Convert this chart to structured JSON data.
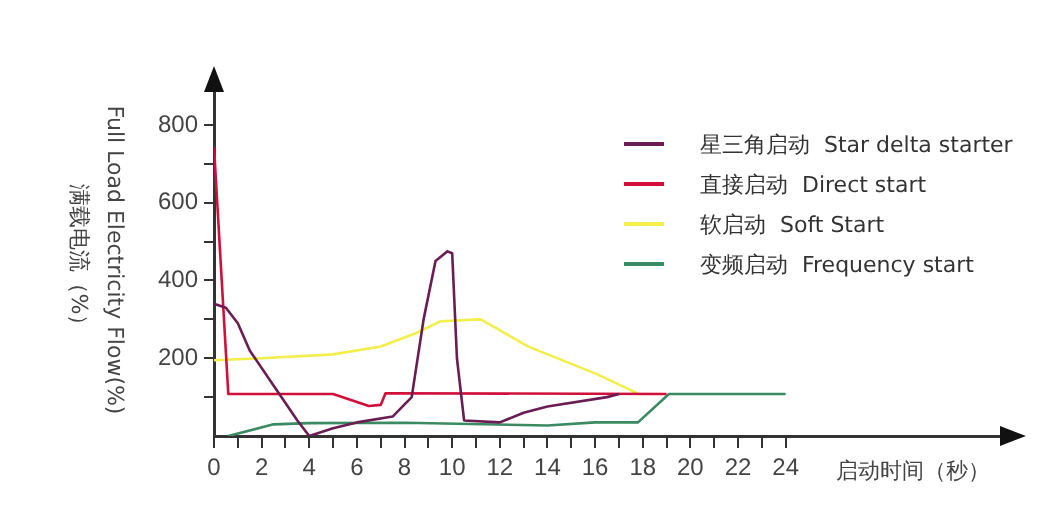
{
  "chart_data": {
    "type": "line",
    "xlabel": "启动时间（秒）",
    "ylabel": "Full Load Electricity Flow(%)\n满载电流（%）",
    "xlim": [
      0,
      33
    ],
    "ylim": [
      0,
      890
    ],
    "xticks": [
      0,
      {
        "value": 1,
        "label": null
      },
      2,
      {
        "value": 3,
        "label": null
      },
      4,
      {
        "value": 5,
        "label": null
      },
      6,
      {
        "value": 7,
        "label": null
      },
      8,
      {
        "value": 9,
        "label": null
      },
      10,
      {
        "value": 11,
        "label": null
      },
      12,
      {
        "value": 13,
        "label": null
      },
      14,
      {
        "value": 15,
        "label": null
      },
      16,
      {
        "value": 17,
        "label": null
      },
      18,
      {
        "value": 19,
        "label": null
      },
      20,
      {
        "value": 21,
        "label": null
      },
      22,
      {
        "value": 23,
        "label": null
      },
      24
    ],
    "yticks": [
      {
        "value": 100,
        "label": null
      },
      200,
      {
        "value": 300,
        "label": null
      },
      400,
      {
        "value": 500,
        "label": null
      },
      600,
      {
        "value": 700,
        "label": null
      },
      800
    ],
    "marker": "none",
    "legend": "top right",
    "series": [
      {
        "name": "星三角启动  Star delta starter",
        "color": "#6a1d52",
        "x": [
          0,
          0.5,
          1,
          1.5,
          2.5,
          3.5,
          4,
          5,
          6,
          7.5,
          8.3,
          8.8,
          9.3,
          9.8,
          10,
          10.2,
          10.5,
          12,
          13,
          14,
          16.5,
          17
        ],
        "values": [
          340,
          330,
          290,
          220,
          130,
          40,
          0,
          20,
          35,
          50,
          100,
          300,
          450,
          475,
          470,
          200,
          40,
          35,
          60,
          76,
          100,
          108
        ]
      },
      {
        "name": "直接启动  Direct start",
        "color": "#d0103a",
        "x": [
          0,
          0.6,
          5,
          6.5,
          7,
          7.2,
          19
        ],
        "values": [
          744,
          108,
          108,
          77,
          80,
          110,
          108
        ]
      },
      {
        "name": "软启动  Soft Start",
        "color": "#f2ef4a",
        "x": [
          0,
          2,
          5,
          7,
          8.5,
          9.5,
          11.2,
          13.2,
          16,
          17.5,
          17.8
        ],
        "values": [
          195,
          200,
          210,
          230,
          265,
          295,
          300,
          230,
          161,
          118,
          108
        ]
      },
      {
        "name": "变频启动  Frequency start",
        "color": "#3a8a62",
        "x": [
          0.6,
          2.5,
          4,
          8,
          14,
          16,
          17.8,
          19.1,
          24
        ],
        "values": [
          0,
          30,
          33,
          34,
          27,
          35,
          35,
          108,
          108
        ]
      }
    ]
  }
}
